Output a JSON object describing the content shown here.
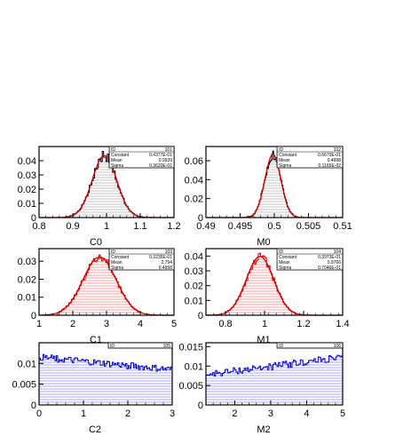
{
  "chart_data": [
    {
      "id": "101",
      "type": "histogram",
      "xlabel": "C0",
      "xlim": [
        0.8,
        1.2
      ],
      "ylim": [
        0,
        0.05
      ],
      "xticks": [
        "0.8",
        "0.9",
        "1",
        "1.1",
        "1.2"
      ],
      "yticks": [
        "0",
        "0.01",
        "0.02",
        "0.03",
        "0.04"
      ],
      "ytick_values": [
        0,
        0.01,
        0.02,
        0.03,
        0.04
      ],
      "xtick_values": [
        0.8,
        0.9,
        1.0,
        1.1,
        1.2
      ],
      "fill": "gray",
      "stats": {
        "id_label": "ID",
        "id": "101",
        "rows": [
          [
            "Constant",
            "0.4377E-01"
          ],
          [
            "Mean",
            "0.9939"
          ],
          [
            "Sigma",
            "0.3620E-01"
          ]
        ]
      },
      "fit": {
        "constant": 0.04377,
        "mean": 0.9939,
        "sigma": 0.0362
      },
      "hist_range": [
        0.88,
        1.11
      ],
      "bins": 60
    },
    {
      "id": "102",
      "type": "histogram",
      "xlabel": "M0",
      "xlim": [
        0.49,
        0.51
      ],
      "ylim": [
        0,
        0.075
      ],
      "xticks": [
        "0.49",
        "0.495",
        "0.5",
        "0.505",
        "0.51"
      ],
      "yticks": [
        "0",
        "0.02",
        "0.04",
        "0.06"
      ],
      "ytick_values": [
        0,
        0.02,
        0.04,
        0.06
      ],
      "xtick_values": [
        0.49,
        0.495,
        0.5,
        0.505,
        0.51
      ],
      "fill": "gray",
      "stats": {
        "id_label": "ID",
        "id": "102",
        "rows": [
          [
            "Constant",
            "0.6670E-01"
          ],
          [
            "Mean",
            "0.4998"
          ],
          [
            "Sigma",
            "0.1165E-02"
          ]
        ]
      },
      "fit": {
        "constant": 0.0667,
        "mean": 0.4998,
        "sigma": 0.001165
      },
      "hist_range": [
        0.4962,
        0.5036
      ],
      "bins": 60
    },
    {
      "id": "103",
      "type": "histogram",
      "xlabel": "C1",
      "xlim": [
        1,
        5
      ],
      "ylim": [
        0,
        0.037
      ],
      "xticks": [
        "1",
        "2",
        "3",
        "4",
        "5"
      ],
      "yticks": [
        "0",
        "0.01",
        "0.02",
        "0.03"
      ],
      "ytick_values": [
        0,
        0.01,
        0.02,
        0.03
      ],
      "xtick_values": [
        1,
        2,
        3,
        4,
        5
      ],
      "fill": "red",
      "stats": {
        "id_label": "ID",
        "id": "103",
        "rows": [
          [
            "Constant",
            "0.3235E-01"
          ],
          [
            "Mean",
            "2.794"
          ],
          [
            "Sigma",
            "0.4958"
          ]
        ]
      },
      "fit": {
        "constant": 0.03235,
        "mean": 2.794,
        "sigma": 0.4958
      },
      "hist_range": [
        1.55,
        4.0
      ],
      "bins": 60
    },
    {
      "id": "104",
      "type": "histogram",
      "xlabel": "M1",
      "xlim": [
        0.7,
        1.4
      ],
      "ylim": [
        0,
        0.045
      ],
      "xticks": [
        "0.8",
        "1",
        "1.2",
        "1.4"
      ],
      "yticks": [
        "0",
        "0.01",
        "0.02",
        "0.03",
        "0.04"
      ],
      "ytick_values": [
        0,
        0.01,
        0.02,
        0.03,
        0.04
      ],
      "xtick_values": [
        0.8,
        1.0,
        1.2,
        1.4
      ],
      "fill": "red",
      "stats": {
        "id_label": "ID",
        "id": "104",
        "rows": [
          [
            "Constant",
            "0.3973E-01"
          ],
          [
            "Mean",
            "0.9766"
          ],
          [
            "Sigma",
            "0.7046E-01"
          ]
        ]
      },
      "fit": {
        "constant": 0.03973,
        "mean": 0.9766,
        "sigma": 0.07046
      },
      "hist_range": [
        0.8,
        1.16
      ],
      "bins": 60
    },
    {
      "id": "105",
      "type": "histogram",
      "xlabel": "C2",
      "xlim": [
        0,
        3
      ],
      "ylim": [
        0,
        0.015
      ],
      "xticks": [
        "0",
        "1",
        "2",
        "3"
      ],
      "yticks": [
        "0",
        "0.005",
        "0.01"
      ],
      "ytick_values": [
        0,
        0.005,
        0.01
      ],
      "xtick_values": [
        0,
        1,
        2,
        3
      ],
      "fill": "blue",
      "stats": {
        "id_label": "ID",
        "id": "105",
        "rows": []
      },
      "trend": {
        "start": 0.0115,
        "end": 0.0085,
        "noise": 0.0008
      },
      "hist_range": [
        0,
        3
      ],
      "bins": 100
    },
    {
      "id": "106",
      "type": "histogram",
      "xlabel": "M2",
      "xlim": [
        1.2,
        5
      ],
      "ylim": [
        0,
        0.016
      ],
      "xticks": [
        "2",
        "3",
        "4",
        "5"
      ],
      "yticks": [
        "0",
        "0.005",
        "0.01",
        "0.015"
      ],
      "ytick_values": [
        0,
        0.005,
        0.01,
        0.015
      ],
      "xtick_values": [
        2,
        3,
        4,
        5
      ],
      "fill": "blue",
      "stats": {
        "id_label": "ID",
        "id": "106",
        "rows": []
      },
      "trend": {
        "start": 0.0078,
        "end": 0.0122,
        "noise": 0.0009
      },
      "hist_range": [
        1.2,
        5
      ],
      "bins": 100
    }
  ]
}
